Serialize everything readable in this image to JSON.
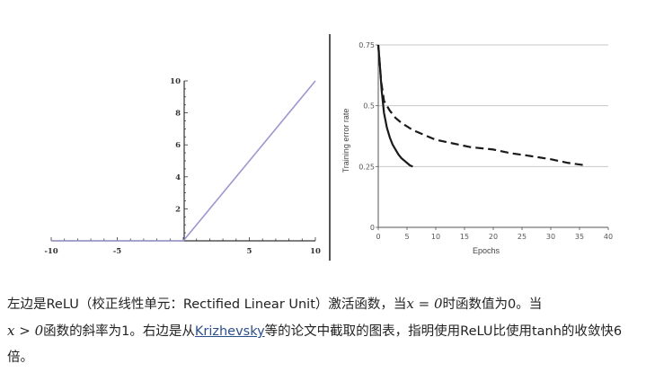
{
  "chart_data": [
    {
      "type": "line",
      "title": "",
      "xlabel": "",
      "ylabel": "",
      "xlim": [
        -10,
        10
      ],
      "ylim": [
        0,
        10
      ],
      "x_ticks": [
        "-10",
        "-5",
        "5",
        "10"
      ],
      "y_ticks": [
        "2",
        "4",
        "6",
        "8",
        "10"
      ],
      "series": [
        {
          "x": [
            -10,
            0,
            10
          ],
          "y": [
            0,
            0,
            10
          ],
          "color": "#9b97d0"
        }
      ]
    },
    {
      "type": "line",
      "title": "",
      "xlabel": "Epochs",
      "ylabel": "Training error rate",
      "xlim": [
        0,
        40
      ],
      "ylim": [
        0,
        0.75
      ],
      "x_ticks": [
        "0",
        "5",
        "10",
        "15",
        "20",
        "25",
        "30",
        "35",
        "40"
      ],
      "y_ticks": [
        "0",
        "0.25",
        "0.5",
        "0.75"
      ],
      "gridlines_y": [
        0.25,
        0.5,
        0.75
      ],
      "series": [
        {
          "style": "solid",
          "x": [
            0,
            0.3,
            0.6,
            1,
            1.5,
            2,
            2.5,
            3,
            3.5,
            4,
            4.5,
            5,
            5.5,
            6
          ],
          "y": [
            0.75,
            0.66,
            0.56,
            0.47,
            0.41,
            0.37,
            0.34,
            0.32,
            0.3,
            0.285,
            0.275,
            0.265,
            0.255,
            0.25
          ]
        },
        {
          "style": "dashed",
          "x": [
            0,
            0.5,
            1,
            2,
            3,
            4,
            6,
            8,
            10,
            13,
            16,
            20,
            23,
            26,
            30,
            33,
            36
          ],
          "y": [
            0.75,
            0.6,
            0.52,
            0.48,
            0.45,
            0.43,
            0.4,
            0.38,
            0.36,
            0.345,
            0.33,
            0.32,
            0.305,
            0.295,
            0.28,
            0.265,
            0.255
          ]
        }
      ]
    }
  ],
  "caption": {
    "part1": "左边是ReLU（校正线性单元：Rectified Linear Unit）激活函数，当",
    "math1": "x = 0",
    "part2": "时函数值为0。当",
    "math2": "x > 0",
    "part3": "函数的斜率为1。右边是从",
    "link": "Krizhevsky",
    "part4": "等的论文中截取的图表，指明使用ReLU比使用tanh的收敛快6倍。"
  }
}
